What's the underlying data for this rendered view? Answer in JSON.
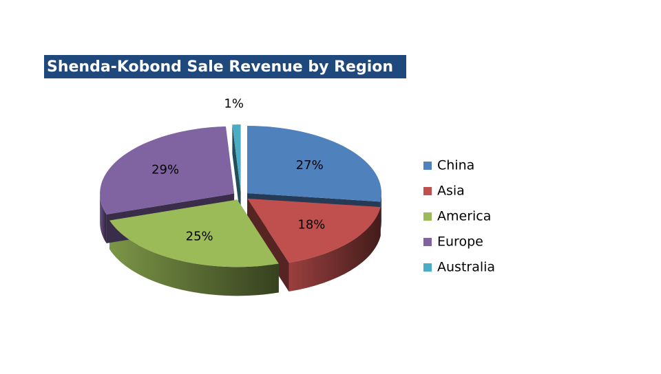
{
  "chart_data": {
    "type": "pie3d",
    "title": "Shenda-Kobond Sale Revenue by Region",
    "categories": [
      "China",
      "Asia",
      "America",
      "Europe",
      "Australia"
    ],
    "values": [
      27,
      18,
      25,
      29,
      1
    ],
    "value_labels": [
      "27%",
      "18%",
      "25%",
      "29%",
      "1%"
    ],
    "colors": [
      "#4f81bd",
      "#c0504d",
      "#9bbb59",
      "#8064a2",
      "#4bacc6"
    ],
    "legend": "right"
  }
}
